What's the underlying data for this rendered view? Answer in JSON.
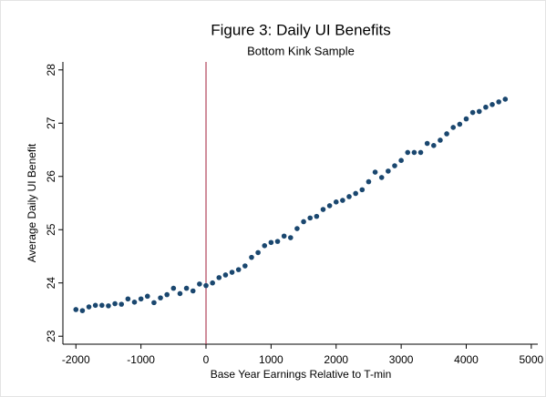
{
  "chart_data": {
    "type": "scatter",
    "title": "Figure 3: Daily UI Benefits",
    "subtitle": "Bottom Kink Sample",
    "xlabel": "Base Year Earnings Relative to T-min",
    "ylabel": "Average Daily UI Benefit",
    "x": [
      -2000,
      -1900,
      -1800,
      -1700,
      -1600,
      -1500,
      -1400,
      -1300,
      -1200,
      -1100,
      -1000,
      -900,
      -800,
      -700,
      -600,
      -500,
      -400,
      -300,
      -200,
      -100,
      0,
      100,
      200,
      300,
      400,
      500,
      600,
      700,
      800,
      900,
      1000,
      1100,
      1200,
      1300,
      1400,
      1500,
      1600,
      1700,
      1800,
      1900,
      2000,
      2100,
      2200,
      2300,
      2400,
      2500,
      2600,
      2700,
      2800,
      2900,
      3000,
      3100,
      3200,
      3300,
      3400,
      3500,
      3600,
      3700,
      3800,
      3900,
      4000,
      4100,
      4200,
      4300,
      4400,
      4500,
      4600
    ],
    "values": [
      23.5,
      23.48,
      23.55,
      23.58,
      23.58,
      23.57,
      23.61,
      23.6,
      23.7,
      23.64,
      23.7,
      23.75,
      23.63,
      23.72,
      23.78,
      23.9,
      23.8,
      23.9,
      23.85,
      23.98,
      23.95,
      24.0,
      24.1,
      24.15,
      24.2,
      24.25,
      24.32,
      24.48,
      24.57,
      24.7,
      24.76,
      24.78,
      24.88,
      24.85,
      25.02,
      25.15,
      25.22,
      25.25,
      25.38,
      25.45,
      25.52,
      25.55,
      25.62,
      25.68,
      25.75,
      25.9,
      26.08,
      25.98,
      26.1,
      26.2,
      26.3,
      26.45,
      26.45,
      26.45,
      26.62,
      26.58,
      26.68,
      26.8,
      26.92,
      26.98,
      27.08,
      27.2,
      27.22,
      27.3,
      27.35,
      27.4,
      27.45
    ],
    "color": "#1a476f",
    "vline": 0,
    "vline_color": "#a3203a",
    "xlim": [
      -2200,
      5100
    ],
    "xticks": [
      -2000,
      -1000,
      0,
      1000,
      2000,
      3000,
      4000,
      5000
    ],
    "ylim": [
      22.85,
      28.15
    ],
    "yticks": [
      23,
      24,
      25,
      26,
      27,
      28
    ]
  }
}
